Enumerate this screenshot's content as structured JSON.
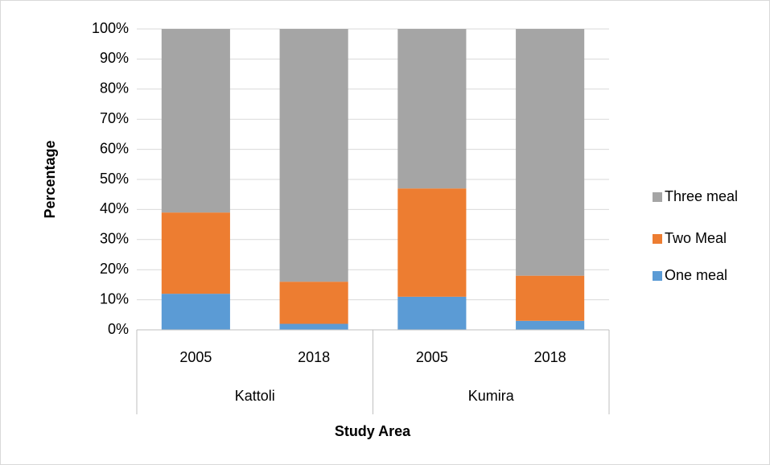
{
  "chart_data": {
    "type": "stacked_bar",
    "categories": [
      "2005",
      "2018",
      "2005",
      "2018"
    ],
    "category_groups": [
      "Kattoli",
      "Kumira"
    ],
    "x_label": "Study Area",
    "y_label": "Percentage",
    "series": [
      {
        "name": "One meal",
        "color": "#5b9bd5",
        "values": [
          12,
          2,
          11,
          3
        ]
      },
      {
        "name": "Two Meal",
        "color": "#ed7d31",
        "values": [
          27,
          14,
          36,
          15
        ]
      },
      {
        "name": "Three meal",
        "color": "#a5a5a5",
        "values": [
          61,
          84,
          53,
          82
        ]
      }
    ],
    "ylim": [
      0,
      100
    ],
    "yticks": [
      {
        "value": 0,
        "label": "0%"
      },
      {
        "value": 10,
        "label": "10%"
      },
      {
        "value": 20,
        "label": "20%"
      },
      {
        "value": 30,
        "label": "30%"
      },
      {
        "value": 40,
        "label": "40%"
      },
      {
        "value": 50,
        "label": "50%"
      },
      {
        "value": 60,
        "label": "60%"
      },
      {
        "value": 70,
        "label": "70%"
      },
      {
        "value": 80,
        "label": "80%"
      },
      {
        "value": 90,
        "label": "90%"
      },
      {
        "value": 100,
        "label": "100%"
      }
    ],
    "grid": true,
    "legend": "right"
  }
}
